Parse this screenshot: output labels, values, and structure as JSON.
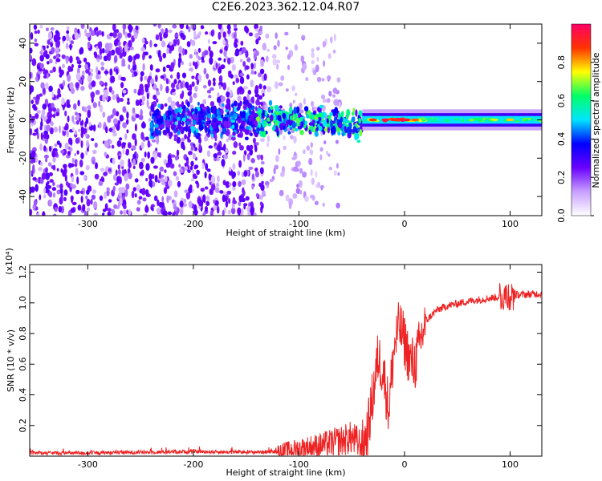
{
  "title": "C2E6.2023.362.12.04.R07",
  "chart_data": [
    {
      "type": "heatmap",
      "xlabel": "Height of straight line (km)",
      "ylabel": "Frequency (Hz)",
      "xlim": [
        -355,
        130
      ],
      "ylim": [
        -50,
        50
      ],
      "x_ticks": [
        -300,
        -200,
        -100,
        0,
        100
      ],
      "y_ticks": [
        -40,
        -20,
        0,
        20,
        40
      ],
      "colorbar": {
        "label": "Normalized spectral amplitude",
        "range": [
          0,
          1
        ],
        "ticks": [
          "0.0",
          "0.2",
          "0.4",
          "0.6",
          "0.8"
        ],
        "colors": [
          "#ffffff",
          "#c8a0ff",
          "#6a00ff",
          "#0000ff",
          "#00e5ff",
          "#00ff66",
          "#ffff00",
          "#ff3300",
          "#ff0066"
        ]
      },
      "structure": [
        {
          "x_range": [
            -355,
            -130
          ],
          "y_range": [
            -50,
            50
          ],
          "amplitude": 0.08,
          "kind": "broadband noise"
        },
        {
          "x_range": [
            -130,
            -60
          ],
          "y_range": [
            -45,
            45
          ],
          "amplitude": 0.04,
          "kind": "sparse noise"
        },
        {
          "x_range": [
            -240,
            -40
          ],
          "y_range": [
            -12,
            12
          ],
          "amplitude": 0.25,
          "kind": "signal cluster"
        },
        {
          "x_range": [
            -40,
            130
          ],
          "y_range": [
            -3,
            3
          ],
          "amplitude": 0.45,
          "kind": "carrier band"
        }
      ]
    },
    {
      "type": "line",
      "xlabel": "Height of straight line (km)",
      "ylabel": "SNR (10 * v/v)",
      "y_scale_label": "(x10⁴)",
      "xlim": [
        -355,
        130
      ],
      "ylim": [
        0,
        1.25
      ],
      "x_ticks": [
        -300,
        -200,
        -100,
        0,
        100
      ],
      "y_ticks": [
        "0.2",
        "0.4",
        "0.6",
        "0.8",
        "1.0",
        "1.2"
      ],
      "line_color": "#ee2222",
      "series": [
        {
          "x": [
            -355,
            -300,
            -250,
            -200,
            -150,
            -120,
            -100,
            -80,
            -60,
            -50,
            -40,
            -35,
            -30,
            -25,
            -20,
            -15,
            -10,
            -5,
            0,
            5,
            10,
            15,
            20,
            30,
            40,
            60,
            80,
            100,
            130
          ],
          "values": [
            0.02,
            0.02,
            0.025,
            0.03,
            0.025,
            0.03,
            0.05,
            0.07,
            0.1,
            0.12,
            0.06,
            0.15,
            0.4,
            0.65,
            0.55,
            0.3,
            0.7,
            0.85,
            0.75,
            0.62,
            0.6,
            0.75,
            0.88,
            0.95,
            0.98,
            1.01,
            1.03,
            1.05,
            1.06
          ]
        }
      ]
    }
  ]
}
